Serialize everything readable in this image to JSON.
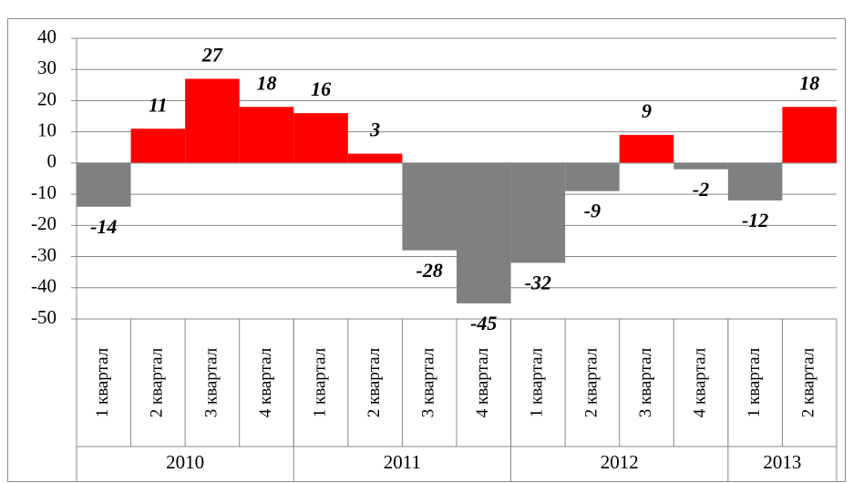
{
  "chart_data": {
    "type": "bar",
    "groups": [
      {
        "label": "2010",
        "categories": [
          "1 квартал",
          "2 квартал",
          "3 квартал",
          "4 квартал"
        ]
      },
      {
        "label": "2011",
        "categories": [
          "1 квартал",
          "2 квартал",
          "3 квартал",
          "4 квартал"
        ]
      },
      {
        "label": "2012",
        "categories": [
          "1 квартал",
          "2 квартал",
          "3 квартал",
          "4 квартал"
        ]
      },
      {
        "label": "2013",
        "categories": [
          "1 квартал",
          "2 квартал"
        ]
      }
    ],
    "values": [
      -14,
      11,
      27,
      18,
      16,
      3,
      -28,
      -45,
      -32,
      -9,
      9,
      -2,
      -12,
      18
    ],
    "colors": [
      "#808080",
      "#ff0000",
      "#ff0000",
      "#ff0000",
      "#ff0000",
      "#ff0000",
      "#808080",
      "#808080",
      "#808080",
      "#808080",
      "#ff0000",
      "#808080",
      "#808080",
      "#ff0000"
    ],
    "ylim": [
      -50,
      40
    ],
    "yticks": [
      -50,
      -40,
      -30,
      -20,
      -10,
      0,
      10,
      20,
      30,
      40
    ],
    "grid": true
  }
}
